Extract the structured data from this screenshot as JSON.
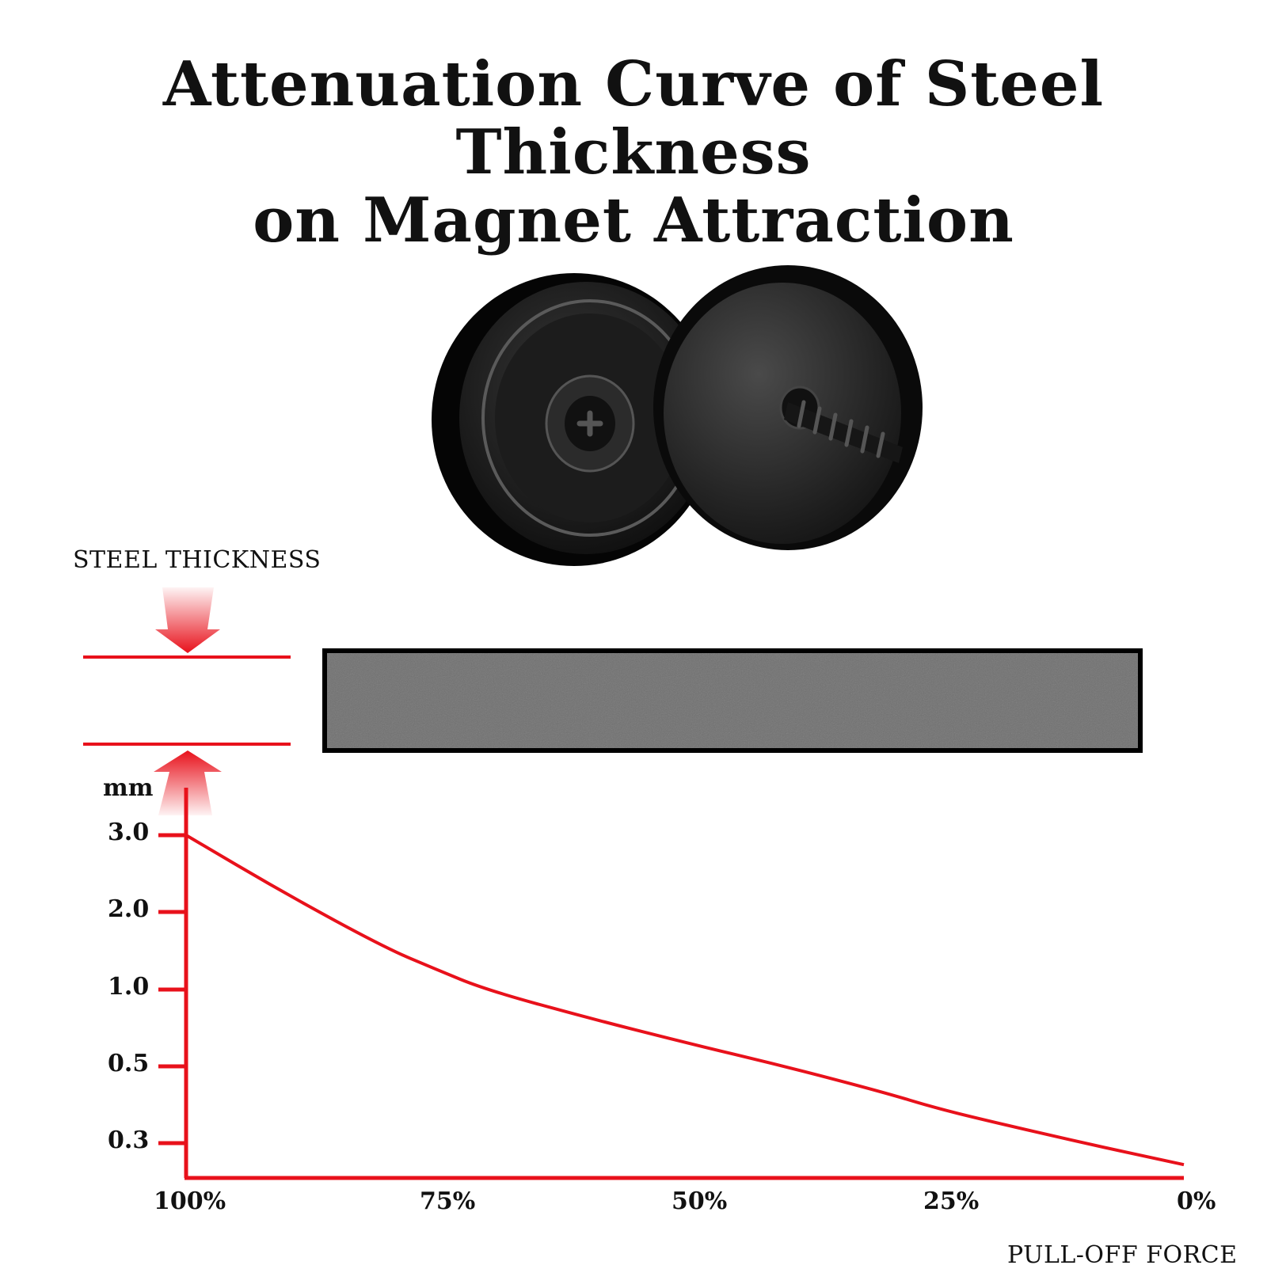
{
  "title": {
    "line1": "Attenuation Curve of Steel Thickness",
    "line2": "on Magnet Attraction"
  },
  "legend": {
    "steel_thickness_label": "STEEL THICKNESS",
    "y_unit": "mm"
  },
  "icons": {
    "product": "mounting-magnet-pair-icon",
    "thickness_arrows": "red-double-arrow-icon"
  },
  "colors": {
    "curve": "#e8111b",
    "steel_plate": "#707070",
    "magnet": "#1a1a1a"
  },
  "chart_data": {
    "type": "line",
    "title": "Attenuation Curve of Steel Thickness on Magnet Attraction",
    "xlabel": "PULL-OFF FORCE",
    "ylabel": "mm",
    "x_tick_labels": [
      "100%",
      "75%",
      "50%",
      "25%",
      "0%"
    ],
    "y_tick_labels": [
      "3.0",
      "2.0",
      "1.0",
      "0.5",
      "0.3"
    ],
    "x_reversed": true,
    "y_scale": "categorical-log",
    "grid": false,
    "series": [
      {
        "x": [
          100,
          90,
          80,
          75,
          70,
          60,
          50,
          40,
          30,
          25,
          20,
          10,
          0
        ],
        "y": [
          3.0,
          2.2,
          1.45,
          1.2,
          1.0,
          0.78,
          0.62,
          0.5,
          0.42,
          0.38,
          0.35,
          0.3,
          0.26
        ]
      }
    ]
  }
}
